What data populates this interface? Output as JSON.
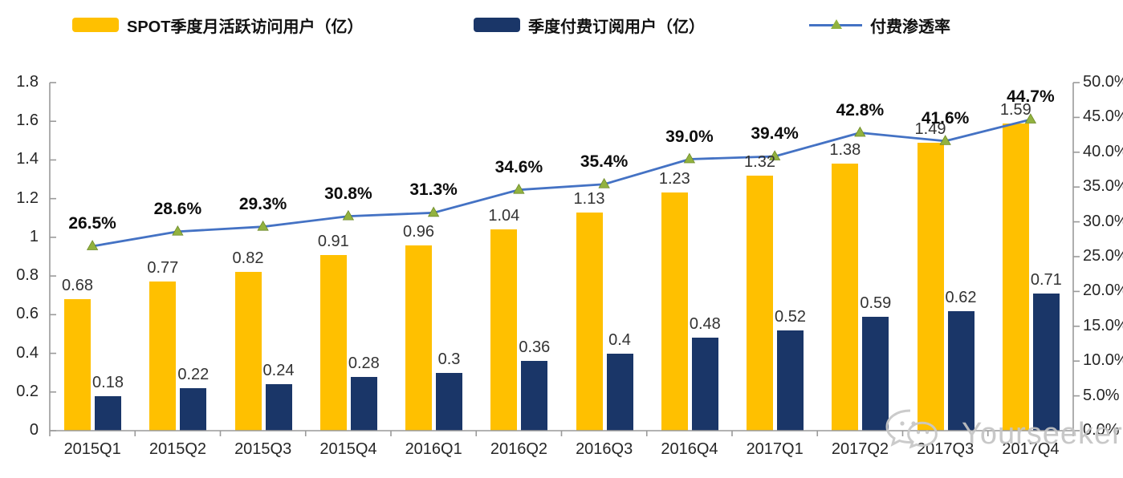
{
  "legend": {
    "items": [
      {
        "label": "SPOT季度月活跃访问用户（亿）",
        "swatch": "bar",
        "color": "#FFC000"
      },
      {
        "label": "季度付费订阅用户（亿）",
        "swatch": "bar",
        "color": "#1A3668"
      },
      {
        "label": "付费渗透率",
        "swatch": "line",
        "color": "#4472C4",
        "marker_color": "#92B23F"
      }
    ]
  },
  "watermark": {
    "text": "Yourseeker",
    "icon": "wechat-icon"
  },
  "colors": {
    "mau_bar": "#FFC000",
    "subs_bar": "#1A3668",
    "line": "#4472C4",
    "marker": "#92B23F",
    "marker_edge": "#6E8A2A",
    "axis": "#9A9A9A"
  },
  "chart_data": {
    "type": "combo-bar-line",
    "title": "",
    "categories": [
      "2015Q1",
      "2015Q2",
      "2015Q3",
      "2015Q4",
      "2016Q1",
      "2016Q2",
      "2016Q3",
      "2016Q4",
      "2017Q1",
      "2017Q2",
      "2017Q3",
      "2017Q4"
    ],
    "series": [
      {
        "name": "SPOT季度月活跃访问用户（亿）",
        "type": "bar",
        "axis": "left",
        "color": "#FFC000",
        "values": [
          0.68,
          0.77,
          0.82,
          0.91,
          0.96,
          1.04,
          1.13,
          1.23,
          1.32,
          1.38,
          1.49,
          1.59
        ],
        "labels": [
          "0.68",
          "0.77",
          "0.82",
          "0.91",
          "0.96",
          "1.04",
          "1.13",
          "1.23",
          "1.32",
          "1.38",
          "1.49",
          "1.59"
        ]
      },
      {
        "name": "季度付费订阅用户（亿）",
        "type": "bar",
        "axis": "left",
        "color": "#1A3668",
        "values": [
          0.18,
          0.22,
          0.24,
          0.28,
          0.3,
          0.36,
          0.4,
          0.48,
          0.52,
          0.59,
          0.62,
          0.71
        ],
        "labels": [
          "0.18",
          "0.22",
          "0.24",
          "0.28",
          "0.3",
          "0.36",
          "0.4",
          "0.48",
          "0.52",
          "0.59",
          "0.62",
          "0.71"
        ]
      },
      {
        "name": "付费渗透率",
        "type": "line",
        "axis": "right",
        "color": "#4472C4",
        "marker": "triangle",
        "marker_color": "#92B23F",
        "values": [
          26.5,
          28.6,
          29.3,
          30.8,
          31.3,
          34.6,
          35.4,
          39.0,
          39.4,
          42.8,
          41.6,
          44.7
        ],
        "labels": [
          "26.5%",
          "28.6%",
          "29.3%",
          "30.8%",
          "31.3%",
          "34.6%",
          "35.4%",
          "39.0%",
          "39.4%",
          "42.8%",
          "41.6%",
          "44.7%"
        ]
      }
    ],
    "y_left": {
      "min": 0,
      "max": 1.8,
      "step": 0.2,
      "ticks": [
        "0",
        "0.2",
        "0.4",
        "0.6",
        "0.8",
        "1",
        "1.2",
        "1.4",
        "1.6",
        "1.8"
      ]
    },
    "y_right": {
      "min": 0,
      "max": 50,
      "step": 5,
      "ticks": [
        "0.0%",
        "5.0%",
        "10.0%",
        "15.0%",
        "20.0%",
        "25.0%",
        "30.0%",
        "35.0%",
        "40.0%",
        "45.0%",
        "50.0%"
      ]
    },
    "grid": false,
    "legend_position": "top"
  }
}
